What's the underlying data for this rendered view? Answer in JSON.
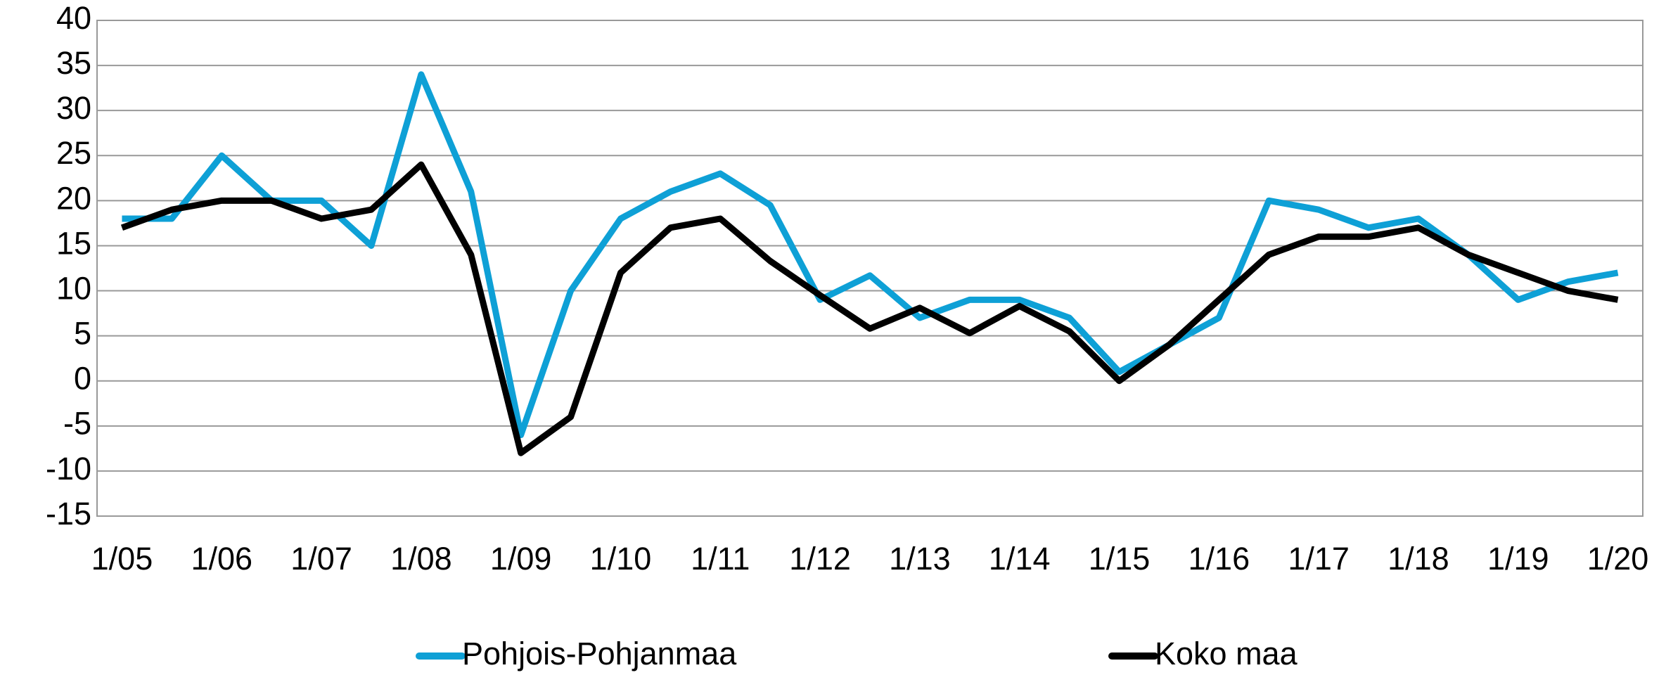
{
  "chart_data": {
    "type": "line",
    "categories": [
      "1/05",
      null,
      "1/06",
      null,
      "1/07",
      null,
      "1/08",
      null,
      "1/09",
      null,
      "1/10",
      null,
      "1/11",
      null,
      "1/12",
      null,
      "1/13",
      null,
      "1/14",
      null,
      "1/15",
      null,
      "1/16",
      null,
      "1/17",
      null,
      "1/18",
      null,
      "1/19",
      null,
      "1/20"
    ],
    "series": [
      {
        "name": "Pohjois-Pohjanmaa",
        "color": "#0ea0d6",
        "values": [
          18,
          18,
          25,
          20,
          20,
          15,
          34,
          21,
          -6,
          10,
          18,
          21,
          23,
          19.5,
          9,
          11.7,
          7,
          9,
          9,
          7,
          1,
          4,
          7,
          20,
          19,
          17,
          18,
          14,
          9,
          11,
          12
        ]
      },
      {
        "name": "Koko maa",
        "color": "#000000",
        "values": [
          17,
          19,
          20,
          20,
          18,
          19,
          24,
          14,
          -8,
          -4,
          12,
          17,
          18,
          13.3,
          9.5,
          5.8,
          8.1,
          5.3,
          8.3,
          5.5,
          0,
          4,
          9,
          14,
          16,
          16,
          17,
          14,
          12,
          10,
          9
        ]
      }
    ],
    "ylim": [
      -15,
      40
    ],
    "yticks": [
      -15,
      -10,
      -5,
      0,
      5,
      10,
      15,
      20,
      25,
      30,
      35,
      40
    ],
    "grid": true,
    "legend": "bottom"
  }
}
